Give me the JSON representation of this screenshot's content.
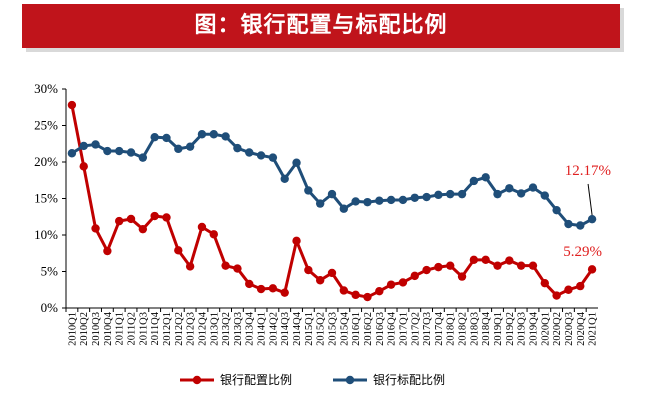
{
  "header": {
    "title": "图：银行配置与标配比例"
  },
  "colors": {
    "banner": "#c0141b",
    "series_alloc": "#c00000",
    "series_standard": "#1f4e79"
  },
  "chart_data": {
    "type": "line",
    "title": "图：银行配置与标配比例",
    "xlabel": "",
    "ylabel": "",
    "ylim": [
      0,
      30
    ],
    "y_ticks": [
      "0%",
      "5%",
      "10%",
      "15%",
      "20%",
      "25%",
      "30%"
    ],
    "grid": false,
    "legend_position": "bottom",
    "categories": [
      "2010Q1",
      "2010Q2",
      "2010Q3",
      "2010Q4",
      "2011Q1",
      "2011Q2",
      "2011Q3",
      "2011Q4",
      "2012Q1",
      "2012Q2",
      "2012Q3",
      "2012Q4",
      "2013Q1",
      "2013Q2",
      "2013Q3",
      "2013Q4",
      "2014Q1",
      "2014Q2",
      "2014Q3",
      "2014Q4",
      "2015Q1",
      "2015Q2",
      "2015Q3",
      "2015Q4",
      "2016Q1",
      "2016Q2",
      "2016Q3",
      "2016Q4",
      "2017Q1",
      "2017Q2",
      "2017Q3",
      "2017Q4",
      "2018Q1",
      "2018Q2",
      "2018Q3",
      "2018Q4",
      "2019Q1",
      "2019Q2",
      "2019Q3",
      "2019Q4",
      "2020Q1",
      "2020Q2",
      "2020Q3",
      "2020Q4",
      "2021Q1"
    ],
    "series": [
      {
        "name": "银行配置比例",
        "color": "#c00000",
        "values": [
          27.8,
          19.4,
          10.9,
          7.8,
          11.9,
          12.2,
          10.8,
          12.6,
          12.4,
          7.9,
          5.7,
          11.1,
          10.1,
          5.8,
          5.4,
          3.3,
          2.6,
          2.7,
          2.1,
          9.2,
          5.2,
          3.8,
          4.8,
          2.4,
          1.8,
          1.5,
          2.3,
          3.2,
          3.5,
          4.4,
          5.2,
          5.6,
          5.8,
          4.3,
          6.6,
          6.6,
          5.8,
          6.5,
          5.8,
          5.8,
          3.4,
          1.7,
          2.5,
          3.0,
          5.29
        ]
      },
      {
        "name": "银行标配比例",
        "color": "#1f4e79",
        "values": [
          21.2,
          22.2,
          22.4,
          21.5,
          21.5,
          21.3,
          20.6,
          23.4,
          23.3,
          21.8,
          22.1,
          23.8,
          23.8,
          23.5,
          21.9,
          21.3,
          20.9,
          20.6,
          17.7,
          19.9,
          16.1,
          14.3,
          15.6,
          13.6,
          14.6,
          14.5,
          14.7,
          14.8,
          14.8,
          15.1,
          15.2,
          15.5,
          15.6,
          15.6,
          17.4,
          17.9,
          15.6,
          16.4,
          15.7,
          16.5,
          15.4,
          13.4,
          11.5,
          11.3,
          12.17
        ]
      }
    ],
    "annotations": [
      {
        "text": "12.17%",
        "series": "银行标配比例",
        "color": "#e02020"
      },
      {
        "text": "5.29%",
        "series": "银行配置比例",
        "color": "#e02020"
      }
    ]
  }
}
